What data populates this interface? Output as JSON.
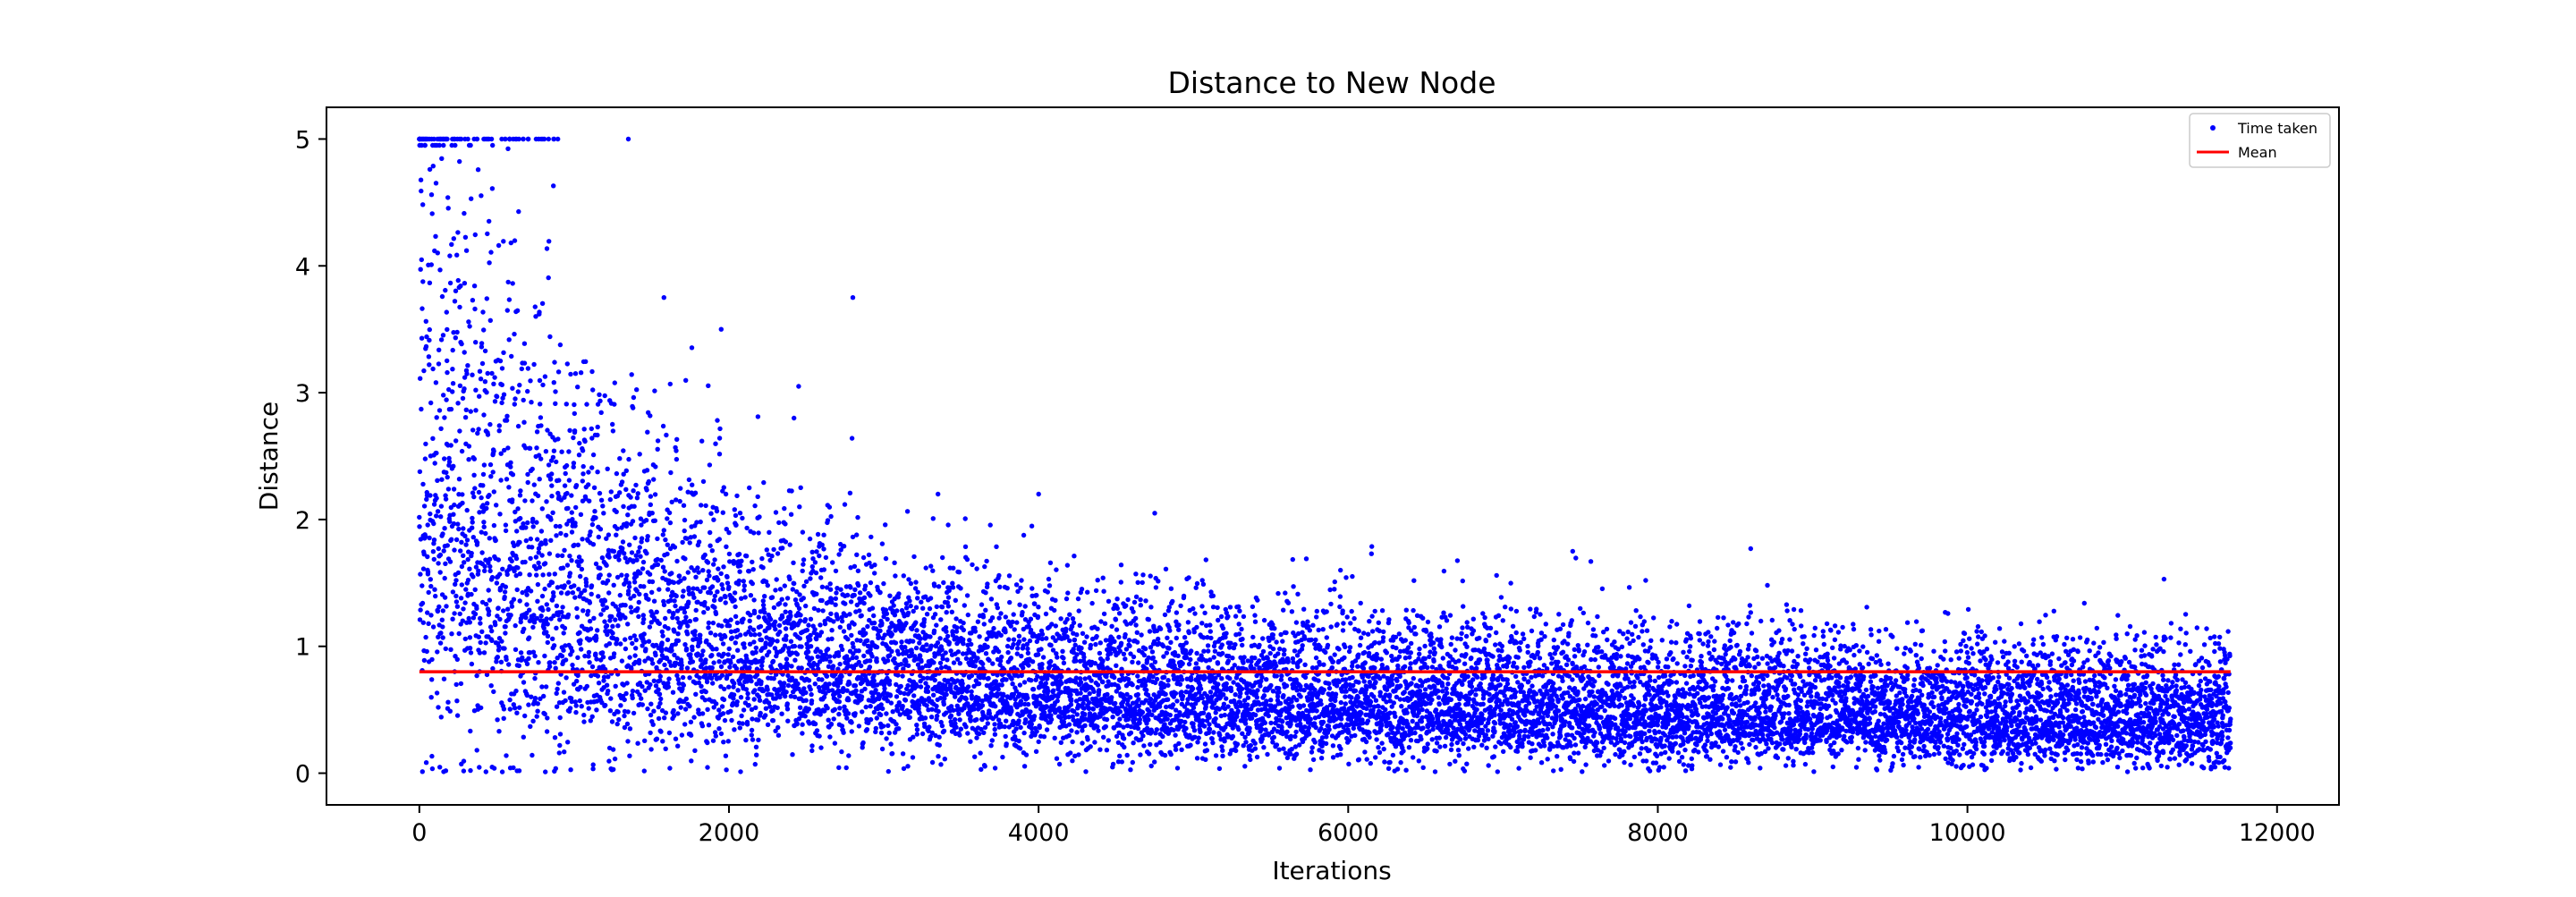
{
  "chart_data": {
    "type": "scatter",
    "title": "Distance to New Node",
    "xlabel": "Iterations",
    "ylabel": "Distance",
    "xlim": [
      -600,
      12400
    ],
    "ylim": [
      -0.25,
      5.25
    ],
    "x_ticks": [
      0,
      2000,
      4000,
      6000,
      8000,
      10000,
      12000
    ],
    "x_tick_labels": [
      "0",
      "2000",
      "4000",
      "6000",
      "8000",
      "10000",
      "12000"
    ],
    "y_ticks": [
      0,
      1,
      2,
      3,
      4,
      5
    ],
    "y_tick_labels": [
      "0",
      "1",
      "2",
      "3",
      "4",
      "5"
    ],
    "grid": false,
    "legend_position": "top-right",
    "series": [
      {
        "name": "Time taken",
        "kind": "scatter",
        "color": "#0000ff",
        "n_points": 11700,
        "x_range": [
          0,
          11700
        ],
        "distribution_profile": [
          {
            "x": 0,
            "median": 2.0,
            "spread": 1.6
          },
          {
            "x": 500,
            "median": 1.6,
            "spread": 1.3
          },
          {
            "x": 1000,
            "median": 1.2,
            "spread": 0.95
          },
          {
            "x": 2000,
            "median": 0.9,
            "spread": 0.65
          },
          {
            "x": 3000,
            "median": 0.72,
            "spread": 0.5
          },
          {
            "x": 4000,
            "median": 0.62,
            "spread": 0.42
          },
          {
            "x": 6000,
            "median": 0.52,
            "spread": 0.35
          },
          {
            "x": 8000,
            "median": 0.45,
            "spread": 0.32
          },
          {
            "x": 11700,
            "median": 0.4,
            "spread": 0.3
          }
        ],
        "capped_points": {
          "y": 5.0,
          "x_range": [
            0,
            900
          ],
          "extra_x": [
            870,
            1350
          ]
        },
        "notable_outliers": [
          {
            "x": 1580,
            "y": 3.75
          },
          {
            "x": 1950,
            "y": 3.5
          },
          {
            "x": 2800,
            "y": 3.75
          },
          {
            "x": 2450,
            "y": 3.05
          },
          {
            "x": 2420,
            "y": 2.8
          },
          {
            "x": 3350,
            "y": 2.2
          },
          {
            "x": 4000,
            "y": 2.2
          },
          {
            "x": 4750,
            "y": 2.05
          },
          {
            "x": 5950,
            "y": 1.6
          },
          {
            "x": 6150,
            "y": 1.73
          },
          {
            "x": 7450,
            "y": 1.75
          },
          {
            "x": 8600,
            "y": 1.77
          },
          {
            "x": 11270,
            "y": 1.53
          }
        ]
      },
      {
        "name": "Mean",
        "kind": "line",
        "color": "#ff0000",
        "x": [
          0,
          11700
        ],
        "y": [
          0.8,
          0.8
        ]
      }
    ]
  }
}
